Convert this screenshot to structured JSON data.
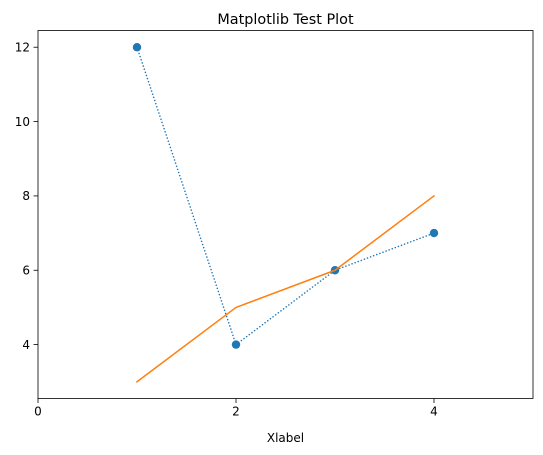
{
  "chart_data": {
    "type": "line",
    "title": "Matplotlib Test Plot",
    "xlabel": "Xlabel",
    "ylabel": "",
    "xlim": [
      0,
      5
    ],
    "ylim": [
      2.55,
      12.45
    ],
    "xticks": [
      0,
      2,
      4
    ],
    "xtick_labels": [
      "0",
      "2",
      "4"
    ],
    "yticks": [
      4,
      6,
      8,
      10,
      12
    ],
    "ytick_labels": [
      "4",
      "6",
      "8",
      "10",
      "12"
    ],
    "grid": false,
    "legend": "none",
    "series": [
      {
        "x": [
          1,
          2,
          3,
          4
        ],
        "values": [
          12,
          4,
          6,
          7
        ],
        "color": "#1f77b4",
        "line_style": "dotted",
        "marker": "circle"
      },
      {
        "x": [
          1,
          2,
          3,
          4
        ],
        "values": [
          3,
          5,
          6,
          8
        ],
        "color": "#ff7f0e",
        "line_style": "solid",
        "marker": "none"
      }
    ]
  }
}
